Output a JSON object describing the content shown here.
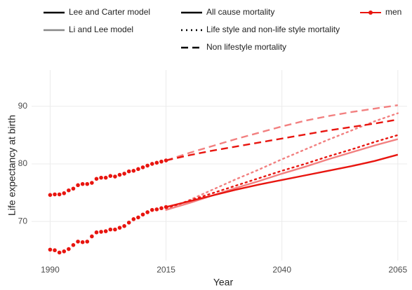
{
  "chart_data": {
    "type": "line",
    "x_label": "Year",
    "y_label": "Life expectancy at birth",
    "xlim": [
      1986,
      2067
    ],
    "ylim": [
      63.2,
      96.3
    ],
    "xticks": [
      1990,
      2015,
      2040,
      2065
    ],
    "yticks": [
      70,
      80,
      90
    ],
    "grid": true,
    "legend": [
      {
        "label": "Lee and Carter model",
        "line": "solid",
        "color": "#000000"
      },
      {
        "label": "Li and Lee model",
        "line": "solid",
        "color": "#888888"
      },
      {
        "label": "All cause mortality",
        "line": "solid",
        "color": "#000000"
      },
      {
        "label": "Life style and non-life style mortality",
        "line": "dotted",
        "color": "#000000"
      },
      {
        "label": "Non lifestyle mortality",
        "line": "dashed",
        "color": "#000000"
      },
      {
        "label": "men",
        "line": "points",
        "color": "#e8150f"
      }
    ],
    "series": [
      {
        "line": "points",
        "color": "#e8150f",
        "x": [
          1990,
          1991,
          1992,
          1993,
          1994,
          1995,
          1996,
          1997,
          1998,
          1999,
          2000,
          2001,
          2002,
          2003,
          2004,
          2005,
          2006,
          2007,
          2008,
          2009,
          2010,
          2011,
          2012,
          2013,
          2014,
          2015
        ],
        "values": [
          74.6,
          74.7,
          74.7,
          74.9,
          75.4,
          75.7,
          76.3,
          76.5,
          76.5,
          76.7,
          77.4,
          77.6,
          77.6,
          77.9,
          77.8,
          78.1,
          78.3,
          78.7,
          78.8,
          79.1,
          79.4,
          79.7,
          80.0,
          80.2,
          80.4,
          80.6
        ]
      },
      {
        "line": "points",
        "color": "#e8150f",
        "x": [
          1990,
          1991,
          1992,
          1993,
          1994,
          1995,
          1996,
          1997,
          1998,
          1999,
          2000,
          2001,
          2002,
          2003,
          2004,
          2005,
          2006,
          2007,
          2008,
          2009,
          2010,
          2011,
          2012,
          2013,
          2014,
          2015
        ],
        "values": [
          65.1,
          65.0,
          64.6,
          64.8,
          65.2,
          65.9,
          66.5,
          66.4,
          66.5,
          67.4,
          68.1,
          68.2,
          68.3,
          68.6,
          68.6,
          68.9,
          69.2,
          69.8,
          70.4,
          70.7,
          71.2,
          71.6,
          72.0,
          72.1,
          72.3,
          72.5
        ]
      },
      {
        "line": "solid",
        "color": "#f28080",
        "x": [
          2015,
          2020,
          2025,
          2030,
          2035,
          2040,
          2045,
          2050,
          2055,
          2060,
          2065
        ],
        "values": [
          72.0,
          73.2,
          74.5,
          75.8,
          77.0,
          78.3,
          79.5,
          80.8,
          82.0,
          83.2,
          84.3
        ]
      },
      {
        "line": "dotted",
        "color": "#f28080",
        "x": [
          2015,
          2020,
          2025,
          2030,
          2035,
          2040,
          2045,
          2050,
          2055,
          2060,
          2065
        ],
        "values": [
          72.0,
          73.7,
          75.5,
          77.3,
          79.0,
          80.8,
          82.5,
          84.2,
          85.8,
          87.4,
          88.8
        ]
      },
      {
        "line": "dashed",
        "color": "#f28080",
        "x": [
          2015,
          2020,
          2025,
          2030,
          2035,
          2040,
          2045,
          2050,
          2055,
          2060,
          2065
        ],
        "values": [
          80.6,
          81.9,
          83.1,
          84.3,
          85.4,
          86.5,
          87.5,
          88.3,
          89.0,
          89.6,
          90.2
        ]
      },
      {
        "line": "solid",
        "color": "#e8150f",
        "x": [
          2015,
          2020,
          2025,
          2030,
          2035,
          2040,
          2045,
          2050,
          2055,
          2060,
          2065
        ],
        "values": [
          72.5,
          73.5,
          74.5,
          75.5,
          76.4,
          77.2,
          78.0,
          78.8,
          79.6,
          80.5,
          81.6
        ]
      },
      {
        "line": "dotted",
        "color": "#e8150f",
        "x": [
          2015,
          2020,
          2025,
          2030,
          2035,
          2040,
          2045,
          2050,
          2055,
          2060,
          2065
        ],
        "values": [
          72.3,
          73.6,
          74.9,
          76.2,
          77.5,
          78.8,
          80.0,
          81.3,
          82.5,
          83.8,
          85.0
        ]
      },
      {
        "line": "dashed",
        "color": "#e8150f",
        "x": [
          2015,
          2020,
          2025,
          2030,
          2035,
          2040,
          2045,
          2050,
          2055,
          2060,
          2065
        ],
        "values": [
          80.6,
          81.5,
          82.3,
          83.0,
          83.7,
          84.4,
          85.1,
          85.8,
          86.4,
          87.0,
          87.7
        ]
      }
    ]
  }
}
